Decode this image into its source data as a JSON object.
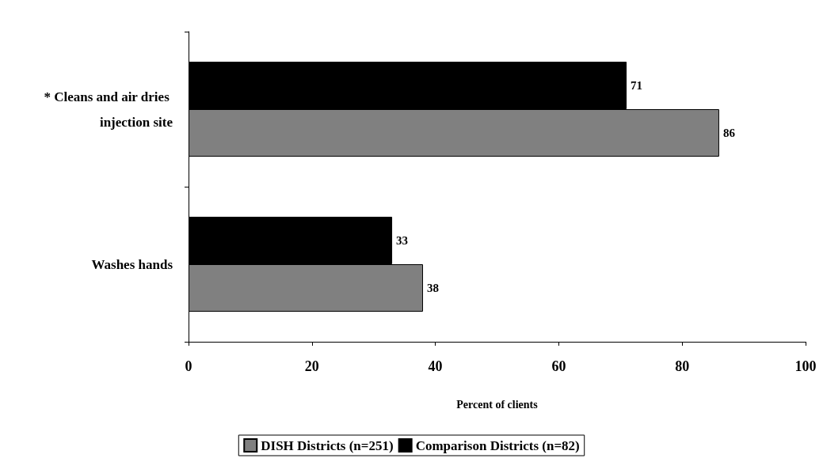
{
  "chart_data": {
    "type": "bar",
    "orientation": "horizontal",
    "xlabel": "Percent of clients",
    "categories": [
      "* Cleans and air dries injection site",
      "Washes hands"
    ],
    "series": [
      {
        "name": "DISH Districts (n=251)",
        "color": "#808080",
        "values": [
          86,
          38
        ]
      },
      {
        "name": "Comparison Districts (n=82)",
        "color": "#000000",
        "values": [
          71,
          33
        ]
      }
    ],
    "xlim": [
      0,
      100
    ],
    "xticks": [
      0,
      20,
      40,
      60,
      80,
      100
    ],
    "grid": false,
    "legend": "bottom",
    "data_labels": true
  }
}
